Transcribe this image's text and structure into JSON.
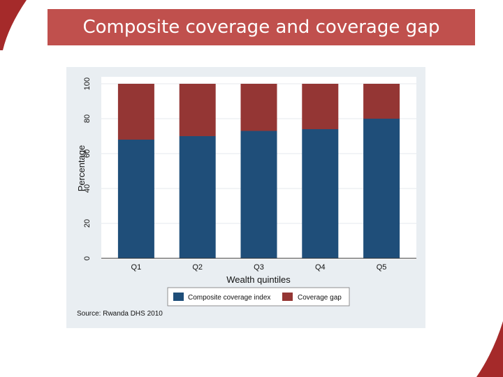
{
  "slide": {
    "title": "Composite coverage and coverage gap",
    "title_bar_color": "#c0504d",
    "decoration_color": "#a52a2a"
  },
  "chart_data": {
    "type": "bar",
    "stacked": true,
    "title": "",
    "categories": [
      "Q1",
      "Q2",
      "Q3",
      "Q4",
      "Q5"
    ],
    "series": [
      {
        "name": "Composite coverage index",
        "color": "#1f4e79",
        "values": [
          68,
          70,
          73,
          74,
          80
        ]
      },
      {
        "name": "Coverage gap",
        "color": "#943634",
        "values": [
          32,
          30,
          27,
          26,
          20
        ]
      }
    ],
    "xlabel": "Wealth quintiles",
    "ylabel": "Percentage",
    "ylim": [
      0,
      100
    ],
    "yticks": [
      0,
      20,
      40,
      60,
      80,
      100
    ],
    "grid": true,
    "legend_position": "bottom",
    "source": "Source: Rwanda DHS 2010"
  }
}
